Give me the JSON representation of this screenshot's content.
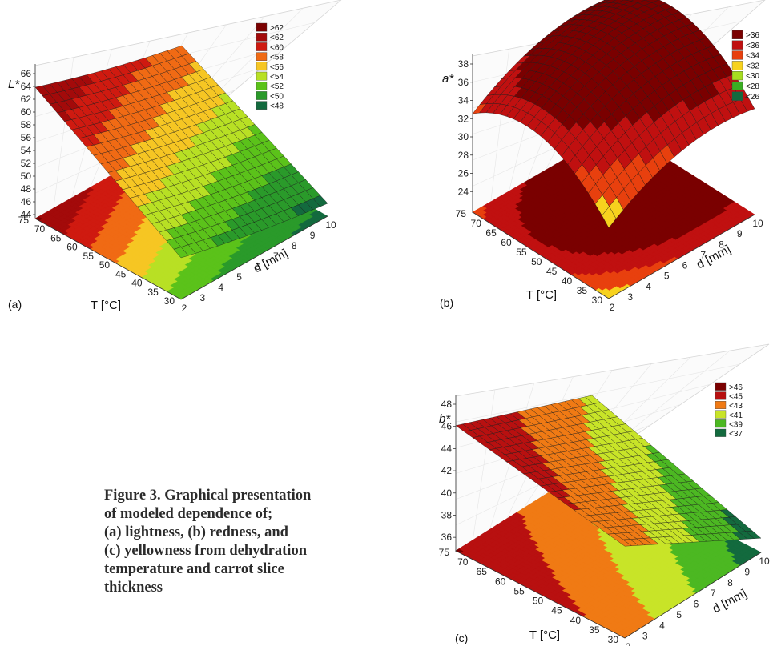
{
  "caption": {
    "lines": [
      "Figure 3. Graphical presentation",
      "of modeled dependence of;",
      "(a) lightness, (b) redness, and",
      "(c) yellowness from dehydration",
      "temperature and carrot slice",
      "thickness"
    ]
  },
  "chart_data": [
    {
      "panel": "(a)",
      "type": "surface3d",
      "zlabel": "L*",
      "xlabel": "d [mm]",
      "ylabel": "T [°C]",
      "x_ticks": [
        "2",
        "3",
        "4",
        "5",
        "6",
        "7",
        "8",
        "9",
        "10"
      ],
      "y_ticks": [
        "30",
        "35",
        "40",
        "45",
        "50",
        "55",
        "60",
        "65",
        "70",
        "75"
      ],
      "z_ticks": [
        "44",
        "46",
        "48",
        "50",
        "52",
        "54",
        "56",
        "58",
        "60",
        "62",
        "64",
        "66"
      ],
      "xlim": [
        2,
        10
      ],
      "ylim": [
        30,
        75
      ],
      "zlim": [
        44,
        66
      ],
      "legend": [
        ">62",
        "<62",
        "<60",
        "<58",
        "<56",
        "<54",
        "<52",
        "<50",
        "<48"
      ],
      "legend_colors": [
        "#7a0000",
        "#a30a0a",
        "#cf1a10",
        "#f06a14",
        "#f6c623",
        "#b8e024",
        "#5bc21a",
        "#2a9a2a",
        "#136a3e"
      ],
      "corner_values": {
        "T30_d2": 50,
        "T75_d2": 64,
        "T30_d10": 44,
        "T75_d10": 48
      },
      "legend_placement": "top-right"
    },
    {
      "panel": "(b)",
      "type": "surface3d",
      "zlabel": "a*",
      "xlabel": "d [mm]",
      "ylabel": "T [°C]",
      "x_ticks": [
        "2",
        "3",
        "4",
        "5",
        "6",
        "7",
        "8",
        "9",
        "10"
      ],
      "y_ticks": [
        "30",
        "35",
        "40",
        "45",
        "50",
        "55",
        "60",
        "65",
        "70",
        "75"
      ],
      "z_ticks": [
        "24",
        "26",
        "28",
        "30",
        "32",
        "34",
        "36",
        "38"
      ],
      "xlim": [
        2,
        10
      ],
      "ylim": [
        30,
        75
      ],
      "zlim": [
        22,
        38
      ],
      "legend": [
        ">36",
        "<36",
        "<34",
        "<32",
        "<30",
        "<28",
        "<26"
      ],
      "legend_colors": [
        "#7a0000",
        "#c01010",
        "#e8400e",
        "#f7d21e",
        "#a6dd20",
        "#3aae23",
        "#136a3e"
      ],
      "corner_values": {
        "T30_d2": 22.5,
        "T75_d2": 30.5,
        "T30_d10": 29,
        "T75_d10": 33
      },
      "legend_placement": "top-right"
    },
    {
      "panel": "(c)",
      "type": "surface3d",
      "zlabel": "b*",
      "xlabel": "d [mm]",
      "ylabel": "T [°C]",
      "x_ticks": [
        "2",
        "3",
        "4",
        "5",
        "6",
        "7",
        "8",
        "9",
        "10"
      ],
      "y_ticks": [
        "30",
        "35",
        "40",
        "45",
        "50",
        "55",
        "60",
        "65",
        "70",
        "75"
      ],
      "z_ticks": [
        "36",
        "38",
        "40",
        "42",
        "44",
        "46",
        "48"
      ],
      "xlim": [
        2,
        10
      ],
      "ylim": [
        30,
        75
      ],
      "zlim": [
        35,
        48
      ],
      "legend": [
        ">46",
        "<45",
        "<43",
        "<41",
        "<39",
        "<37"
      ],
      "legend_colors": [
        "#7a0000",
        "#b81010",
        "#f07a14",
        "#c8e428",
        "#4cb822",
        "#136a3e"
      ],
      "corner_values": {
        "T30_d2": 43,
        "T75_d2": 46,
        "T30_d10": 36,
        "T75_d10": 41
      },
      "legend_placement": "top-right"
    }
  ]
}
